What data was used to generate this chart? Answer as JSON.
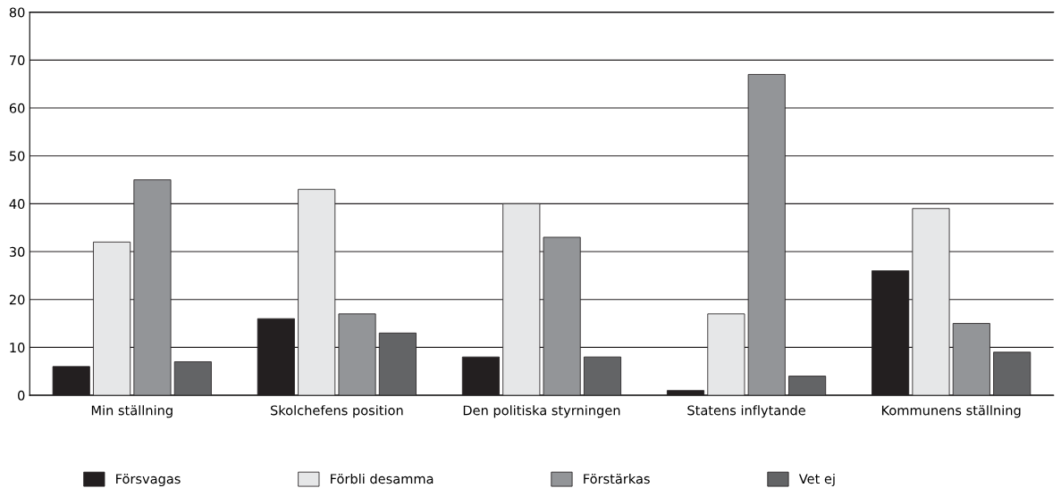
{
  "chart_data": {
    "type": "bar",
    "categories": [
      "Min ställning",
      "Skolchefens position",
      "Den politiska styrningen",
      "Statens inflytande",
      "Kommunens ställning"
    ],
    "series": [
      {
        "name": "Försvagas",
        "color": "#231f20",
        "values": [
          6,
          16,
          8,
          1,
          26
        ]
      },
      {
        "name": "Förbli desamma",
        "color": "#e6e7e8",
        "values": [
          32,
          43,
          40,
          17,
          39
        ]
      },
      {
        "name": "Förstärkas",
        "color": "#939598",
        "values": [
          45,
          17,
          33,
          67,
          15
        ]
      },
      {
        "name": "Vet ej",
        "color": "#636466",
        "values": [
          7,
          13,
          8,
          4,
          9
        ]
      }
    ],
    "ylim": [
      0,
      80
    ],
    "yticks": [
      0,
      10,
      20,
      30,
      40,
      50,
      60,
      70,
      80
    ],
    "grid": "y",
    "legend": "bottom"
  }
}
